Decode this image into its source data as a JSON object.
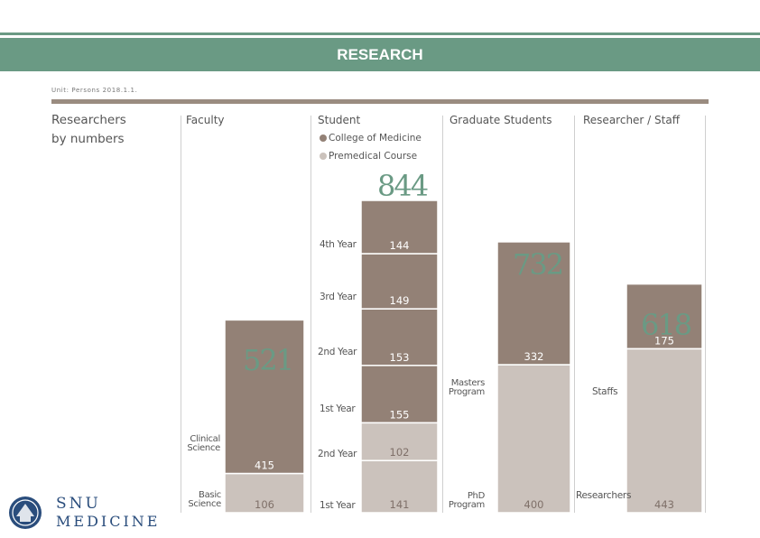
{
  "header": {
    "title": "RESEARCH",
    "unit_note": "Unit: Persons 2018.1.1."
  },
  "section": {
    "title_line1": "Researchers",
    "title_line2": "by numbers"
  },
  "columns": {
    "faculty": "Faculty",
    "student": "Student",
    "graduate": "Graduate Students",
    "staff": "Researcher / Staff"
  },
  "legend": {
    "college": "College of Medicine",
    "premedical": "Premedical Course"
  },
  "colors": {
    "accent": "#6a9a84",
    "dark": "#938176",
    "light": "#cbc2bc",
    "rule": "#9a8c80"
  },
  "logo": {
    "line1": "SNU",
    "line2": "MEDICINE"
  },
  "chart_data": {
    "type": "bar",
    "stacked": true,
    "groups": [
      {
        "name": "Faculty",
        "total": "521",
        "segments": [
          {
            "label": "Basic Science",
            "value": 106,
            "label_text": "106",
            "shade": "light"
          },
          {
            "label": "Clinical Science",
            "value": 415,
            "label_text": "415",
            "shade": "dark"
          }
        ]
      },
      {
        "name": "Student",
        "total": "844",
        "segments": [
          {
            "label": "1st Year",
            "value": 141,
            "label_text": "141",
            "shade": "light"
          },
          {
            "label": "2nd Year",
            "value": 102,
            "label_text": "102",
            "shade": "light"
          },
          {
            "label": "1st Year",
            "value": 155,
            "label_text": "155",
            "shade": "dark"
          },
          {
            "label": "2nd Year",
            "value": 153,
            "label_text": "153",
            "shade": "dark"
          },
          {
            "label": "3rd Year",
            "value": 149,
            "label_text": "149",
            "shade": "dark"
          },
          {
            "label": "4th Year",
            "value": 144,
            "label_text": "144",
            "shade": "dark"
          }
        ]
      },
      {
        "name": "Graduate Students",
        "total": "732",
        "segments": [
          {
            "label": "PhD Program",
            "value": 400,
            "label_text": "400",
            "shade": "light"
          },
          {
            "label": "Masters Program",
            "value": 332,
            "label_text": "332",
            "shade": "dark"
          }
        ]
      },
      {
        "name": "Researcher / Staff",
        "total": "618",
        "segments": [
          {
            "label": "Researchers",
            "value": 443,
            "label_text": "443",
            "shade": "light"
          },
          {
            "label": "Staffs",
            "value": 175,
            "label_text": "175",
            "shade": "dark"
          }
        ]
      }
    ],
    "title": "",
    "xlabel": "",
    "ylabel": "",
    "grid": false
  }
}
